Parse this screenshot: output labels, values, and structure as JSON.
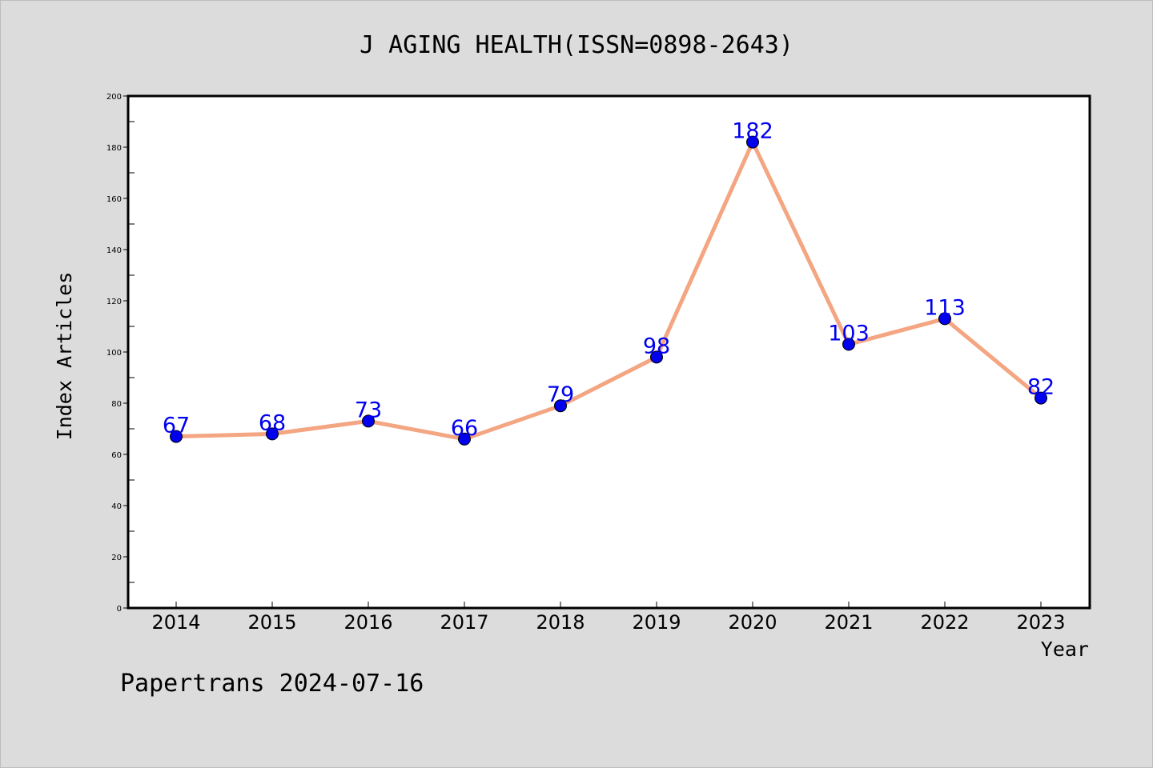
{
  "chart_data": {
    "type": "line",
    "title": "J AGING HEALTH(ISSN=0898-2643)",
    "xlabel": "Year",
    "ylabel": "Index Articles",
    "categories": [
      "2014",
      "2015",
      "2016",
      "2017",
      "2018",
      "2019",
      "2020",
      "2021",
      "2022",
      "2023"
    ],
    "series": [
      {
        "values": [
          67,
          68,
          73,
          66,
          79,
          98,
          182,
          103,
          113,
          82
        ]
      }
    ],
    "ylim": [
      0,
      200
    ],
    "yticks": [
      0,
      20,
      40,
      60,
      80,
      100,
      120,
      140,
      160,
      180,
      200
    ],
    "grid": false,
    "legend": "none",
    "data_labels": true,
    "colors": {
      "line": "#f4a582",
      "marker": "#0000ee",
      "label": "#0000ee",
      "background": "#dcdcdc",
      "plot": "#ffffff"
    }
  },
  "footer": {
    "text": "Papertrans 2024-07-16"
  }
}
